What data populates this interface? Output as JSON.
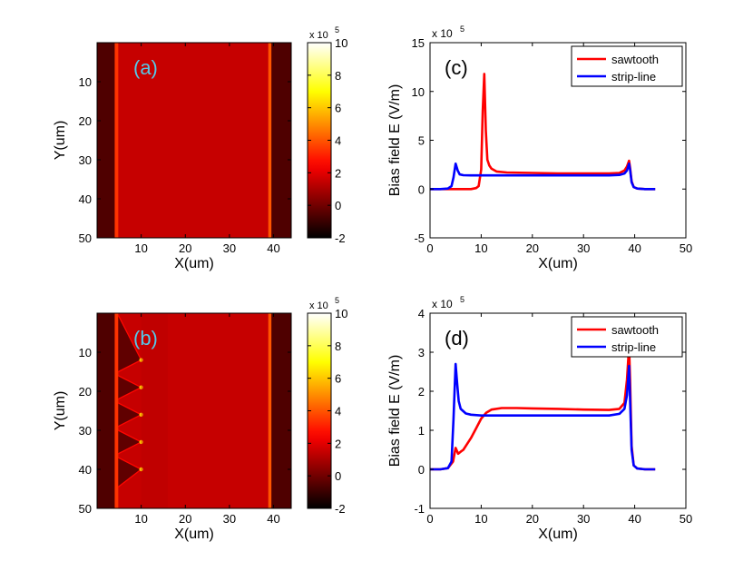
{
  "chart_data": [
    {
      "panel_label": "(a)",
      "type": "heatmap",
      "xlabel": "X(um)",
      "ylabel": "Y(um)",
      "xlim": [
        0,
        44
      ],
      "ylim": [
        0,
        50
      ],
      "x_ticks": [
        10,
        20,
        30,
        40
      ],
      "y_ticks": [
        10,
        20,
        30,
        40,
        50
      ],
      "y_reversed": true,
      "colormap": "hot",
      "colorbar": {
        "range": [
          -2,
          10
        ],
        "ticks": [
          -2,
          0,
          2,
          4,
          6,
          8,
          10
        ],
        "exponent": "x 10",
        "exponent_power": "5"
      },
      "regions": {
        "dark_left_edge": 4.0,
        "bright_left_line": 4.8,
        "bright_right_line": 38.8,
        "dark_right_start": 39.5,
        "field_value": 1.5
      },
      "sawtooth_tips_y": []
    },
    {
      "panel_label": "(b)",
      "type": "heatmap",
      "xlabel": "X(um)",
      "ylabel": "Y(um)",
      "xlim": [
        0,
        44
      ],
      "ylim": [
        0,
        50
      ],
      "x_ticks": [
        10,
        20,
        30,
        40
      ],
      "y_ticks": [
        10,
        20,
        30,
        40,
        50
      ],
      "y_reversed": true,
      "colormap": "hot",
      "colorbar": {
        "range": [
          -2,
          10
        ],
        "ticks": [
          -2,
          0,
          2,
          4,
          6,
          8,
          10
        ],
        "exponent": "x 10",
        "exponent_power": "5"
      },
      "regions": {
        "dark_left_edge": 4.0,
        "bright_left_line": 4.8,
        "bright_right_line": 38.8,
        "dark_right_start": 39.5,
        "field_value": 1.5
      },
      "sawtooth_tips_y": [
        12,
        19,
        26,
        33,
        40
      ],
      "sawtooth_tip_x": 10
    },
    {
      "panel_label": "(c)",
      "type": "line",
      "xlabel": "X(um)",
      "ylabel": "Bias field E (V/m)",
      "xlim": [
        0,
        50
      ],
      "ylim": [
        -5,
        15
      ],
      "x_ticks": [
        0,
        10,
        20,
        30,
        40,
        50
      ],
      "y_ticks": [
        -5,
        0,
        5,
        10,
        15
      ],
      "exponent": "x 10",
      "exponent_power": "5",
      "legend_position": "top-right",
      "series": [
        {
          "name": "sawtooth",
          "color": "#ff0000",
          "x": [
            0,
            2,
            4,
            6,
            8,
            9,
            9.5,
            10,
            10.3,
            10.6,
            10.9,
            11.2,
            11.6,
            12,
            13,
            15,
            20,
            25,
            30,
            35,
            37,
            38,
            38.5,
            38.9,
            39.1,
            39.4,
            39.8,
            40.5,
            42,
            44
          ],
          "y": [
            0,
            0,
            0,
            0,
            0,
            0.1,
            0.3,
            2,
            8,
            11.8,
            6,
            3,
            2.4,
            2.1,
            1.8,
            1.7,
            1.65,
            1.6,
            1.6,
            1.6,
            1.65,
            1.9,
            2.3,
            2.9,
            2.2,
            0.8,
            0.2,
            0.05,
            0,
            0
          ]
        },
        {
          "name": "strip-line",
          "color": "#0000ff",
          "x": [
            0,
            2,
            3.5,
            4.2,
            4.6,
            5,
            5.4,
            5.8,
            6.5,
            8,
            10,
            15,
            20,
            25,
            30,
            35,
            37,
            38,
            38.5,
            38.9,
            39.1,
            39.4,
            39.8,
            40.5,
            42,
            44
          ],
          "y": [
            0,
            0,
            0.05,
            0.3,
            1.2,
            2.6,
            1.9,
            1.5,
            1.42,
            1.4,
            1.4,
            1.4,
            1.4,
            1.4,
            1.4,
            1.4,
            1.45,
            1.6,
            1.9,
            2.6,
            2.0,
            0.7,
            0.2,
            0.05,
            0,
            0
          ]
        }
      ]
    },
    {
      "panel_label": "(d)",
      "type": "line",
      "xlabel": "X(um)",
      "ylabel": "Bias field E (V/m)",
      "xlim": [
        0,
        50
      ],
      "ylim": [
        -1,
        4
      ],
      "x_ticks": [
        0,
        10,
        20,
        30,
        40,
        50
      ],
      "y_ticks": [
        -1,
        0,
        1,
        2,
        3,
        4
      ],
      "exponent": "x 10",
      "exponent_power": "5",
      "legend_position": "top-right",
      "series": [
        {
          "name": "sawtooth",
          "color": "#ff0000",
          "x": [
            0,
            2,
            3.5,
            4.5,
            5,
            5.5,
            6,
            6.5,
            7,
            8,
            9,
            10,
            11,
            12,
            14,
            17,
            20,
            25,
            30,
            35,
            37,
            38,
            38.5,
            38.9,
            39.1,
            39.4,
            39.8,
            40.5,
            42,
            44
          ],
          "y": [
            0,
            0,
            0.03,
            0.2,
            0.55,
            0.4,
            0.45,
            0.5,
            0.6,
            0.8,
            1.05,
            1.3,
            1.45,
            1.53,
            1.57,
            1.57,
            1.56,
            1.55,
            1.53,
            1.52,
            1.55,
            1.7,
            2.3,
            3.15,
            2.3,
            0.6,
            0.1,
            0.02,
            0,
            0
          ]
        },
        {
          "name": "strip-line",
          "color": "#0000ff",
          "x": [
            0,
            2,
            3.5,
            4.2,
            4.6,
            5,
            5.3,
            5.6,
            6,
            7,
            8,
            10,
            15,
            20,
            25,
            30,
            35,
            37,
            38,
            38.5,
            38.9,
            39.1,
            39.4,
            39.8,
            40.5,
            42,
            44
          ],
          "y": [
            0,
            0,
            0.03,
            0.2,
            1.3,
            2.7,
            2.2,
            1.75,
            1.55,
            1.43,
            1.4,
            1.38,
            1.38,
            1.38,
            1.38,
            1.38,
            1.38,
            1.42,
            1.55,
            1.9,
            2.65,
            1.8,
            0.5,
            0.1,
            0.02,
            0,
            0
          ]
        }
      ]
    }
  ]
}
